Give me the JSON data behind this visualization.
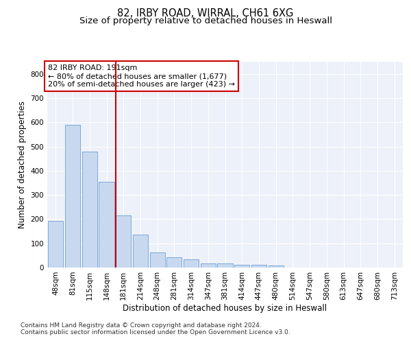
{
  "title_line1": "82, IRBY ROAD, WIRRAL, CH61 6XG",
  "title_line2": "Size of property relative to detached houses in Heswall",
  "xlabel": "Distribution of detached houses by size in Heswall",
  "ylabel": "Number of detached properties",
  "bar_labels": [
    "48sqm",
    "81sqm",
    "115sqm",
    "148sqm",
    "181sqm",
    "214sqm",
    "248sqm",
    "281sqm",
    "314sqm",
    "347sqm",
    "381sqm",
    "414sqm",
    "447sqm",
    "480sqm",
    "514sqm",
    "547sqm",
    "580sqm",
    "613sqm",
    "647sqm",
    "680sqm",
    "713sqm"
  ],
  "bar_values": [
    192,
    588,
    480,
    355,
    215,
    135,
    62,
    42,
    35,
    17,
    17,
    11,
    11,
    8,
    0,
    0,
    0,
    0,
    0,
    0,
    0
  ],
  "bar_color": "#c8d9ef",
  "bar_edge_color": "#6b9fd4",
  "highlight_bar_index": 4,
  "highlight_color": "#cc0000",
  "annotation_line1": "82 IRBY ROAD: 191sqm",
  "annotation_line2": "← 80% of detached houses are smaller (1,677)",
  "annotation_line3": "20% of semi-detached houses are larger (423) →",
  "annotation_box_edgecolor": "#cc0000",
  "ylim": [
    0,
    850
  ],
  "yticks": [
    0,
    100,
    200,
    300,
    400,
    500,
    600,
    700,
    800
  ],
  "plot_bg_color": "#edf1f9",
  "grid_color": "#ffffff",
  "footer_line1": "Contains HM Land Registry data © Crown copyright and database right 2024.",
  "footer_line2": "Contains public sector information licensed under the Open Government Licence v3.0.",
  "title1_fontsize": 10.5,
  "title2_fontsize": 9.5,
  "axis_label_fontsize": 8.5,
  "tick_fontsize": 7.5,
  "annotation_fontsize": 8,
  "footer_fontsize": 6.5
}
